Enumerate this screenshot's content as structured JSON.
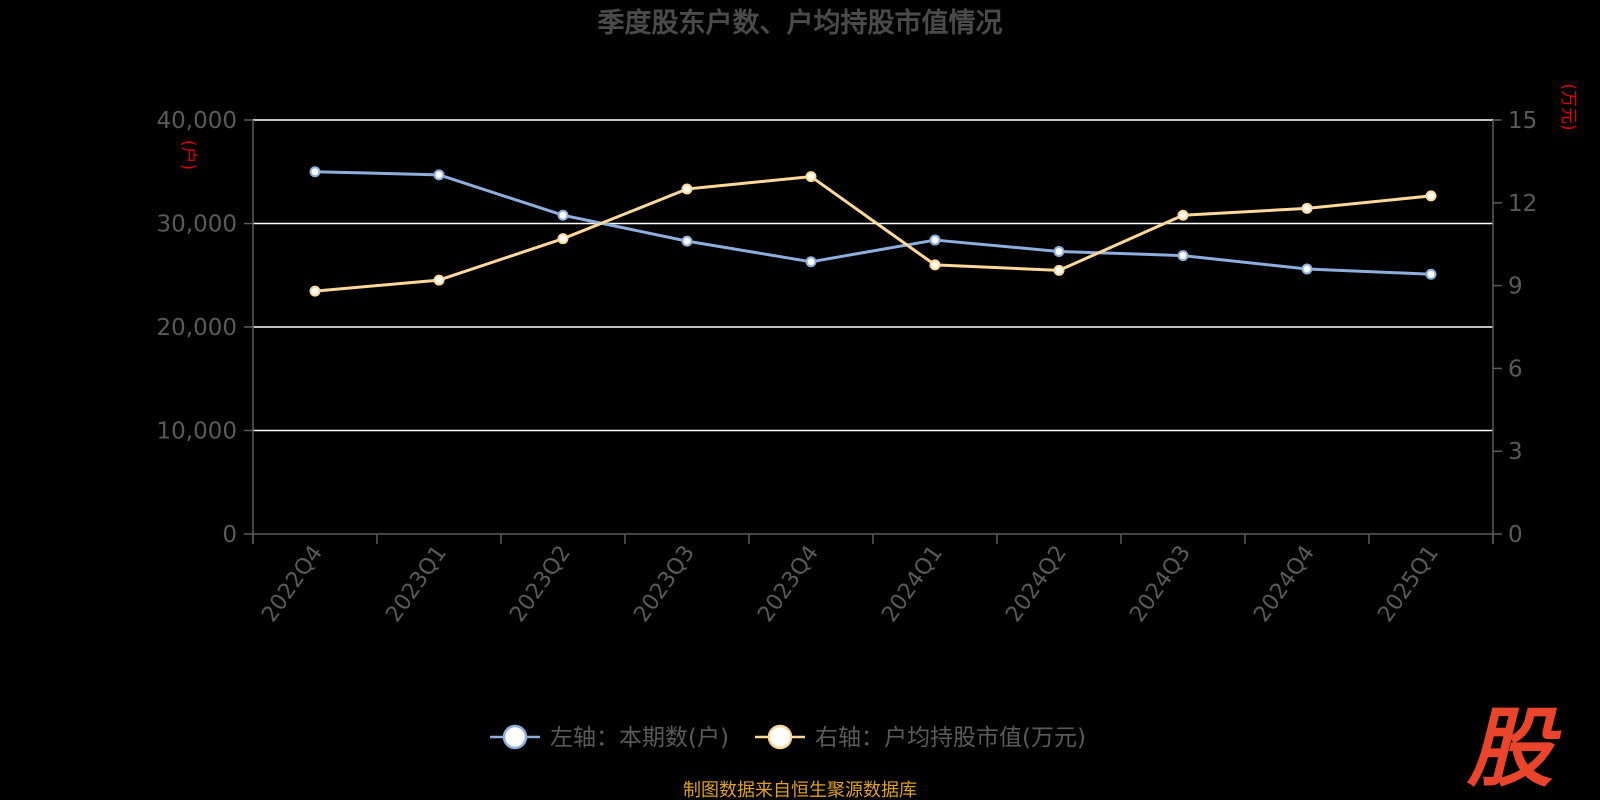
{
  "chart_data": {
    "type": "line",
    "title": "季度股东户数、户均持股市值情况",
    "categories": [
      "2022Q4",
      "2023Q1",
      "2023Q2",
      "2023Q3",
      "2023Q4",
      "2024Q1",
      "2024Q2",
      "2024Q3",
      "2024Q4",
      "2025Q1"
    ],
    "left_axis": {
      "unit": "(户)",
      "ylim": [
        0,
        40000
      ],
      "ticks": [
        "0",
        "10,000",
        "20,000",
        "30,000",
        "40,000"
      ]
    },
    "right_axis": {
      "unit": "(万元)",
      "ylim": [
        0,
        15
      ],
      "ticks": [
        "0",
        "3",
        "6",
        "9",
        "12",
        "15"
      ]
    },
    "series": [
      {
        "name": "左轴：本期数(户)",
        "axis": "left",
        "color": "#8eaedc",
        "values": [
          35000,
          34700,
          30800,
          28300,
          26300,
          28400,
          27300,
          26900,
          25600,
          25100
        ]
      },
      {
        "name": "右轴：户均持股市值(万元)",
        "axis": "right",
        "color": "#fcd89a",
        "values": [
          8.8,
          9.2,
          10.7,
          12.5,
          12.95,
          9.75,
          9.55,
          11.55,
          11.8,
          12.25
        ]
      }
    ],
    "grid": true,
    "legend_position": "bottom-center"
  },
  "footer": {
    "source": "制图数据来自恒生聚源数据库",
    "logo": "股"
  },
  "colors": {
    "background": "#000000",
    "gridline": "#ffffff",
    "axis": "#5a5a5a",
    "unit_label": "#e00000",
    "source_text": "#e0a020",
    "logo": "#e8452c"
  }
}
